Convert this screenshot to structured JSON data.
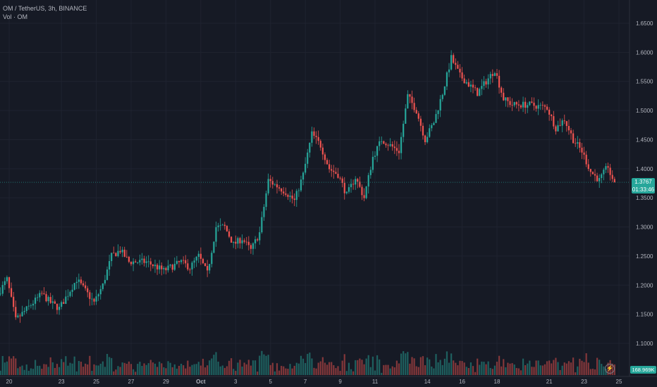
{
  "legend": {
    "symbol_line": "OM / TetherUS, 3h, BINANCE",
    "volume_line": "Vol · OM"
  },
  "price_label": {
    "value": "1.3767",
    "countdown": "01:33:46"
  },
  "volume_label": "168.969K",
  "colors": {
    "up": "#26a69a",
    "down": "#ef5350",
    "background": "#161a25",
    "grid": "#1f2330",
    "text": "#b2b5be"
  },
  "chart_data": {
    "type": "candlestick",
    "y_axis": {
      "ticks": [
        "1.6500",
        "1.6000",
        "1.5500",
        "1.5000",
        "1.4500",
        "1.4000",
        "1.3500",
        "1.3000",
        "1.2500",
        "1.2000",
        "1.1500",
        "1.1000"
      ],
      "ylim": [
        1.07,
        1.665
      ]
    },
    "x_axis": {
      "tick_labels": [
        "20",
        "23",
        "25",
        "27",
        "29",
        "Oct",
        "3",
        "5",
        "7",
        "9",
        "11",
        "14",
        "16",
        "18",
        "21",
        "23",
        "25"
      ]
    },
    "last_price": 1.3767,
    "anchors": [
      [
        "2024-09-19T12:00",
        1.185
      ],
      [
        "2024-09-20T00:00",
        1.21
      ],
      [
        "2024-09-20T12:00",
        1.14
      ],
      [
        "2024-09-21T12:00",
        1.17
      ],
      [
        "2024-09-22T00:00",
        1.185
      ],
      [
        "2024-09-22T12:00",
        1.17
      ],
      [
        "2024-09-23T00:00",
        1.16
      ],
      [
        "2024-09-23T12:00",
        1.185
      ],
      [
        "2024-09-24T00:00",
        1.21
      ],
      [
        "2024-09-24T12:00",
        1.19
      ],
      [
        "2024-09-25T00:00",
        1.17
      ],
      [
        "2024-09-25T12:00",
        1.2
      ],
      [
        "2024-09-26T00:00",
        1.25
      ],
      [
        "2024-09-26T12:00",
        1.26
      ],
      [
        "2024-09-27T00:00",
        1.24
      ],
      [
        "2024-09-28T00:00",
        1.24
      ],
      [
        "2024-09-29T00:00",
        1.225
      ],
      [
        "2024-09-30T00:00",
        1.24
      ],
      [
        "2024-09-30T12:00",
        1.23
      ],
      [
        "2024-10-01T00:00",
        1.25
      ],
      [
        "2024-10-01T12:00",
        1.22
      ],
      [
        "2024-10-02T00:00",
        1.3
      ],
      [
        "2024-10-02T12:00",
        1.3
      ],
      [
        "2024-10-03T00:00",
        1.27
      ],
      [
        "2024-10-03T12:00",
        1.28
      ],
      [
        "2024-10-04T00:00",
        1.26
      ],
      [
        "2024-10-04T12:00",
        1.29
      ],
      [
        "2024-10-05T00:00",
        1.38
      ],
      [
        "2024-10-06T00:00",
        1.36
      ],
      [
        "2024-10-06T12:00",
        1.345
      ],
      [
        "2024-10-07T00:00",
        1.39
      ],
      [
        "2024-10-07T12:00",
        1.46
      ],
      [
        "2024-10-08T00:00",
        1.44
      ],
      [
        "2024-10-08T12:00",
        1.4
      ],
      [
        "2024-10-09T00:00",
        1.39
      ],
      [
        "2024-10-09T12:00",
        1.355
      ],
      [
        "2024-10-10T00:00",
        1.385
      ],
      [
        "2024-10-10T12:00",
        1.35
      ],
      [
        "2024-10-11T00:00",
        1.42
      ],
      [
        "2024-10-11T12:00",
        1.45
      ],
      [
        "2024-10-12T12:00",
        1.43
      ],
      [
        "2024-10-13T00:00",
        1.525
      ],
      [
        "2024-10-13T12:00",
        1.5
      ],
      [
        "2024-10-14T00:00",
        1.45
      ],
      [
        "2024-10-14T12:00",
        1.48
      ],
      [
        "2024-10-15T00:00",
        1.53
      ],
      [
        "2024-10-15T12:00",
        1.59
      ],
      [
        "2024-10-16T00:00",
        1.56
      ],
      [
        "2024-10-16T12:00",
        1.545
      ],
      [
        "2024-10-17T00:00",
        1.53
      ],
      [
        "2024-10-17T12:00",
        1.55
      ],
      [
        "2024-10-18T00:00",
        1.57
      ],
      [
        "2024-10-18T12:00",
        1.52
      ],
      [
        "2024-10-19T00:00",
        1.51
      ],
      [
        "2024-10-20T00:00",
        1.51
      ],
      [
        "2024-10-21T00:00",
        1.505
      ],
      [
        "2024-10-21T12:00",
        1.47
      ],
      [
        "2024-10-22T00:00",
        1.485
      ],
      [
        "2024-10-22T12:00",
        1.45
      ],
      [
        "2024-10-23T00:00",
        1.43
      ],
      [
        "2024-10-23T12:00",
        1.395
      ],
      [
        "2024-10-24T00:00",
        1.38
      ],
      [
        "2024-10-24T12:00",
        1.405
      ],
      [
        "2024-10-24T18:00",
        1.3767
      ]
    ]
  }
}
